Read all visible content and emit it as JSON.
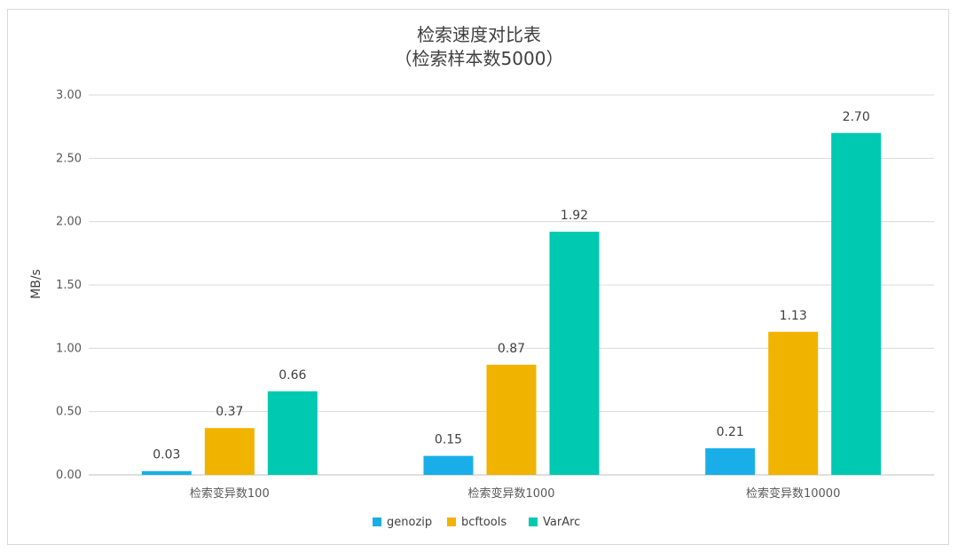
{
  "colors": {
    "gridline": "#d9d9d9",
    "axis": "#bfbfbf",
    "frame": "#d9d9d9"
  },
  "chart_data": {
    "type": "bar",
    "title": "检索速度对比表",
    "subtitle": "（检索样本数5000）",
    "xlabel": "",
    "ylabel": "MB/s",
    "ylim": [
      0,
      3
    ],
    "yticks": [
      0,
      0.5,
      1,
      1.5,
      2,
      2.5,
      3
    ],
    "ytick_labels": [
      "0.00",
      "0.50",
      "1.00",
      "1.50",
      "2.00",
      "2.50",
      "3.00"
    ],
    "grid": true,
    "legend_position": "bottom",
    "categories": [
      "检索变异数100",
      "检索变异数1000",
      "检索变异数10000"
    ],
    "series": [
      {
        "name": "genozip",
        "color": "#1aaee8",
        "values": [
          0.03,
          0.15,
          0.21
        ],
        "labels": [
          "0.03",
          "0.15",
          "0.21"
        ]
      },
      {
        "name": "bcftools",
        "color": "#f0b400",
        "values": [
          0.37,
          0.87,
          1.13
        ],
        "labels": [
          "0.37",
          "0.87",
          "1.13"
        ]
      },
      {
        "name": "VarArc",
        "color": "#00c9b1",
        "values": [
          0.66,
          1.92,
          2.7
        ],
        "labels": [
          "0.66",
          "1.92",
          "2.70"
        ]
      }
    ]
  }
}
